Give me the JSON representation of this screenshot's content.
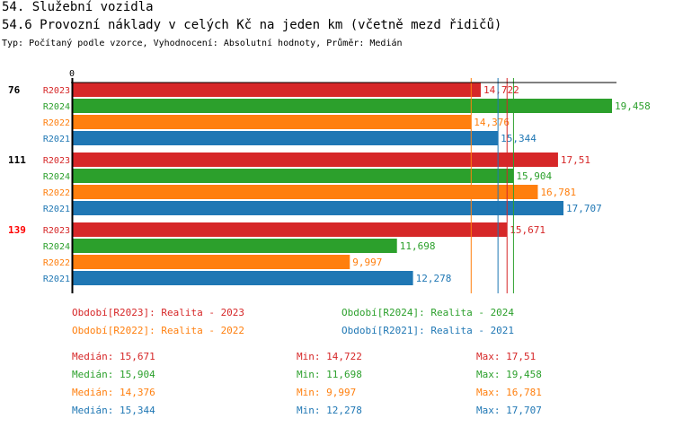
{
  "header": {
    "title": "54. Služební vozidla",
    "subtitle": "54.6 Provozní náklady v celých Kč na jeden km (včetně mezd řidičů)",
    "info": "Typ: Počítaný podle vzorce, Vyhodnocení: Absolutní hodnoty, Průměr: Medián"
  },
  "colors": {
    "R2023": "#d62728",
    "R2024": "#2ca02c",
    "R2022": "#ff7f0e",
    "R2021": "#1f77b4"
  },
  "chart_data": {
    "type": "bar",
    "orientation": "horizontal",
    "xlim": [
      0,
      19.458
    ],
    "x_tick_labels": [
      "0"
    ],
    "groups": [
      {
        "label": "76",
        "label_color": "#000000",
        "bars": [
          {
            "series": "R2023",
            "value": 14.722,
            "label": "14,722"
          },
          {
            "series": "R2024",
            "value": 19.458,
            "label": "19,458"
          },
          {
            "series": "R2022",
            "value": 14.376,
            "label": "14,376"
          },
          {
            "series": "R2021",
            "value": 15.344,
            "label": "15,344"
          }
        ]
      },
      {
        "label": "111",
        "label_color": "#000000",
        "bars": [
          {
            "series": "R2023",
            "value": 17.51,
            "label": "17,51"
          },
          {
            "series": "R2024",
            "value": 15.904,
            "label": "15,904"
          },
          {
            "series": "R2022",
            "value": 16.781,
            "label": "16,781"
          },
          {
            "series": "R2021",
            "value": 17.707,
            "label": "17,707"
          }
        ]
      },
      {
        "label": "139",
        "label_color": "#ff0000",
        "bars": [
          {
            "series": "R2023",
            "value": 15.671,
            "label": "15,671"
          },
          {
            "series": "R2024",
            "value": 11.698,
            "label": "11,698"
          },
          {
            "series": "R2022",
            "value": 9.997,
            "label": "9,997"
          },
          {
            "series": "R2021",
            "value": 12.278,
            "label": "12,278"
          }
        ]
      }
    ],
    "median_lines": [
      {
        "series": "R2022",
        "value": 14.376
      },
      {
        "series": "R2021",
        "value": 15.344
      },
      {
        "series": "R2023",
        "value": 15.671
      },
      {
        "series": "R2024",
        "value": 15.904
      }
    ],
    "legend": [
      {
        "series": "R2023",
        "label": "Období[R2023]: Realita - 2023"
      },
      {
        "series": "R2024",
        "label": "Období[R2024]: Realita - 2024"
      },
      {
        "series": "R2022",
        "label": "Období[R2022]: Realita - 2022"
      },
      {
        "series": "R2021",
        "label": "Období[R2021]: Realita - 2021"
      }
    ],
    "stats": [
      {
        "series": "R2023",
        "median": "Medián: 15,671",
        "min": "Min: 14,722",
        "max": "Max: 17,51"
      },
      {
        "series": "R2024",
        "median": "Medián: 15,904",
        "min": "Min: 11,698",
        "max": "Max: 19,458"
      },
      {
        "series": "R2022",
        "median": "Medián: 14,376",
        "min": "Min: 9,997",
        "max": "Max: 16,781"
      },
      {
        "series": "R2021",
        "median": "Medián: 15,344",
        "min": "Min: 12,278",
        "max": "Max: 17,707"
      }
    ]
  }
}
